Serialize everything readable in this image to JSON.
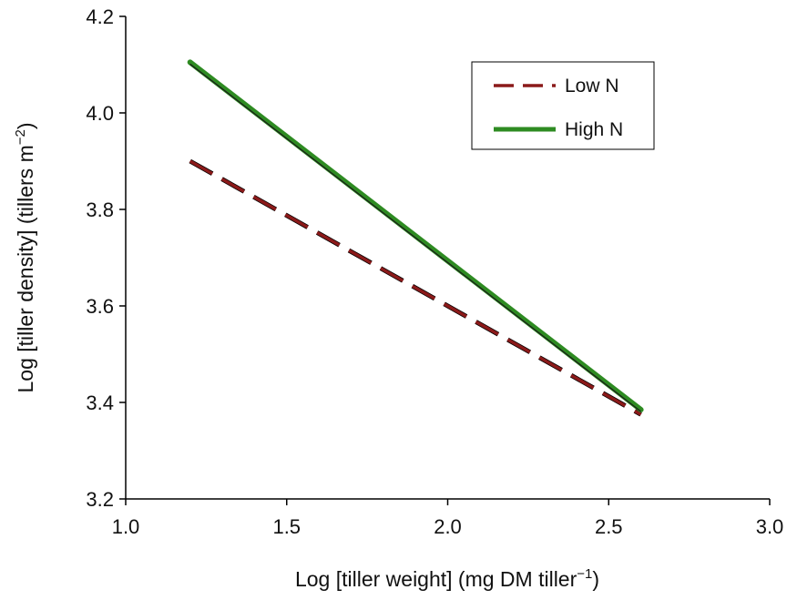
{
  "chart_data": {
    "type": "line",
    "title": "",
    "xlabel": "Log [tiller weight] (mg DM tiller",
    "xlabel_sup": "−1",
    "xlabel_end": ")",
    "ylabel": "Log [tiller density] (tillers m",
    "ylabel_sup": "−2",
    "ylabel_end": ")",
    "xlim": [
      1.0,
      3.0
    ],
    "ylim": [
      3.2,
      4.2
    ],
    "xticks": [
      "1.0",
      "1.5",
      "2.0",
      "2.5",
      "3.0"
    ],
    "yticks": [
      "3.2",
      "3.4",
      "3.6",
      "3.8",
      "4.0",
      "4.2"
    ],
    "legend_position": "top-right",
    "series": [
      {
        "name": "Low N",
        "style": "dashed",
        "color": "#8B1A1A",
        "x": [
          1.2,
          2.6
        ],
        "y": [
          3.9,
          3.375
        ]
      },
      {
        "name": "High N",
        "style": "solid",
        "color": "#2E8B22",
        "x": [
          1.2,
          2.6
        ],
        "y": [
          4.105,
          3.385
        ]
      }
    ]
  }
}
